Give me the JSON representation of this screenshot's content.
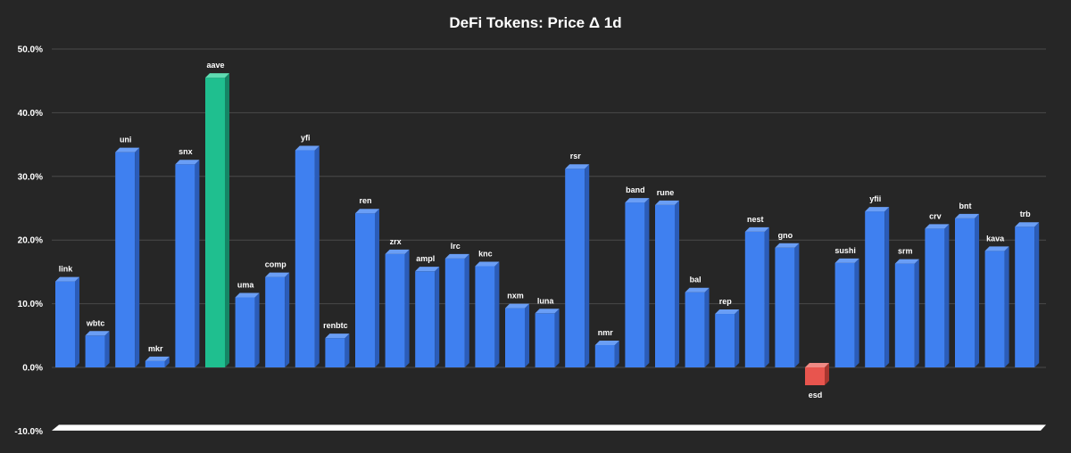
{
  "chart_data": {
    "type": "bar",
    "title": "DeFi Tokens: Price Δ 1d",
    "xlabel": "",
    "ylabel": "",
    "ylim": [
      -10,
      50
    ],
    "yticks": [
      50,
      40,
      30,
      20,
      10,
      0,
      -10
    ],
    "ytick_labels": [
      "50.0%",
      "40.0%",
      "30.0%",
      "20.0%",
      "10.0%",
      "0.0%",
      "-10.0%"
    ],
    "grid": true,
    "legend": "none",
    "categories": [
      "link",
      "wbtc",
      "uni",
      "mkr",
      "snx",
      "aave",
      "uma",
      "comp",
      "yfi",
      "renbtc",
      "ren",
      "zrx",
      "ampl",
      "lrc",
      "knc",
      "nxm",
      "luna",
      "rsr",
      "nmr",
      "band",
      "rune",
      "bal",
      "rep",
      "nest",
      "gno",
      "esd",
      "sushi",
      "yfii",
      "srm",
      "crv",
      "bnt",
      "kava",
      "trb"
    ],
    "values": [
      13.5,
      5.0,
      33.8,
      1.0,
      31.9,
      45.5,
      11.0,
      14.2,
      34.1,
      4.6,
      24.2,
      17.8,
      15.1,
      17.1,
      15.9,
      9.3,
      8.5,
      31.2,
      3.5,
      25.9,
      25.5,
      11.8,
      8.4,
      21.3,
      18.8,
      -2.8,
      16.4,
      24.5,
      16.3,
      21.8,
      23.4,
      18.3,
      22.1
    ],
    "colors": {
      "default": "#3f80f0",
      "default_side": "#2b5cb8",
      "default_top": "#6a9ef5",
      "highlight": "#1fbf8f",
      "highlight_side": "#158565",
      "highlight_top": "#5fdcb2",
      "negative": "#e8554e",
      "negative_side": "#a8362f",
      "negative_top": "#f08a84",
      "floor": "#ffffff",
      "grid": "#4a4a4a",
      "background": "#262626"
    },
    "highlight_category": "aave"
  }
}
